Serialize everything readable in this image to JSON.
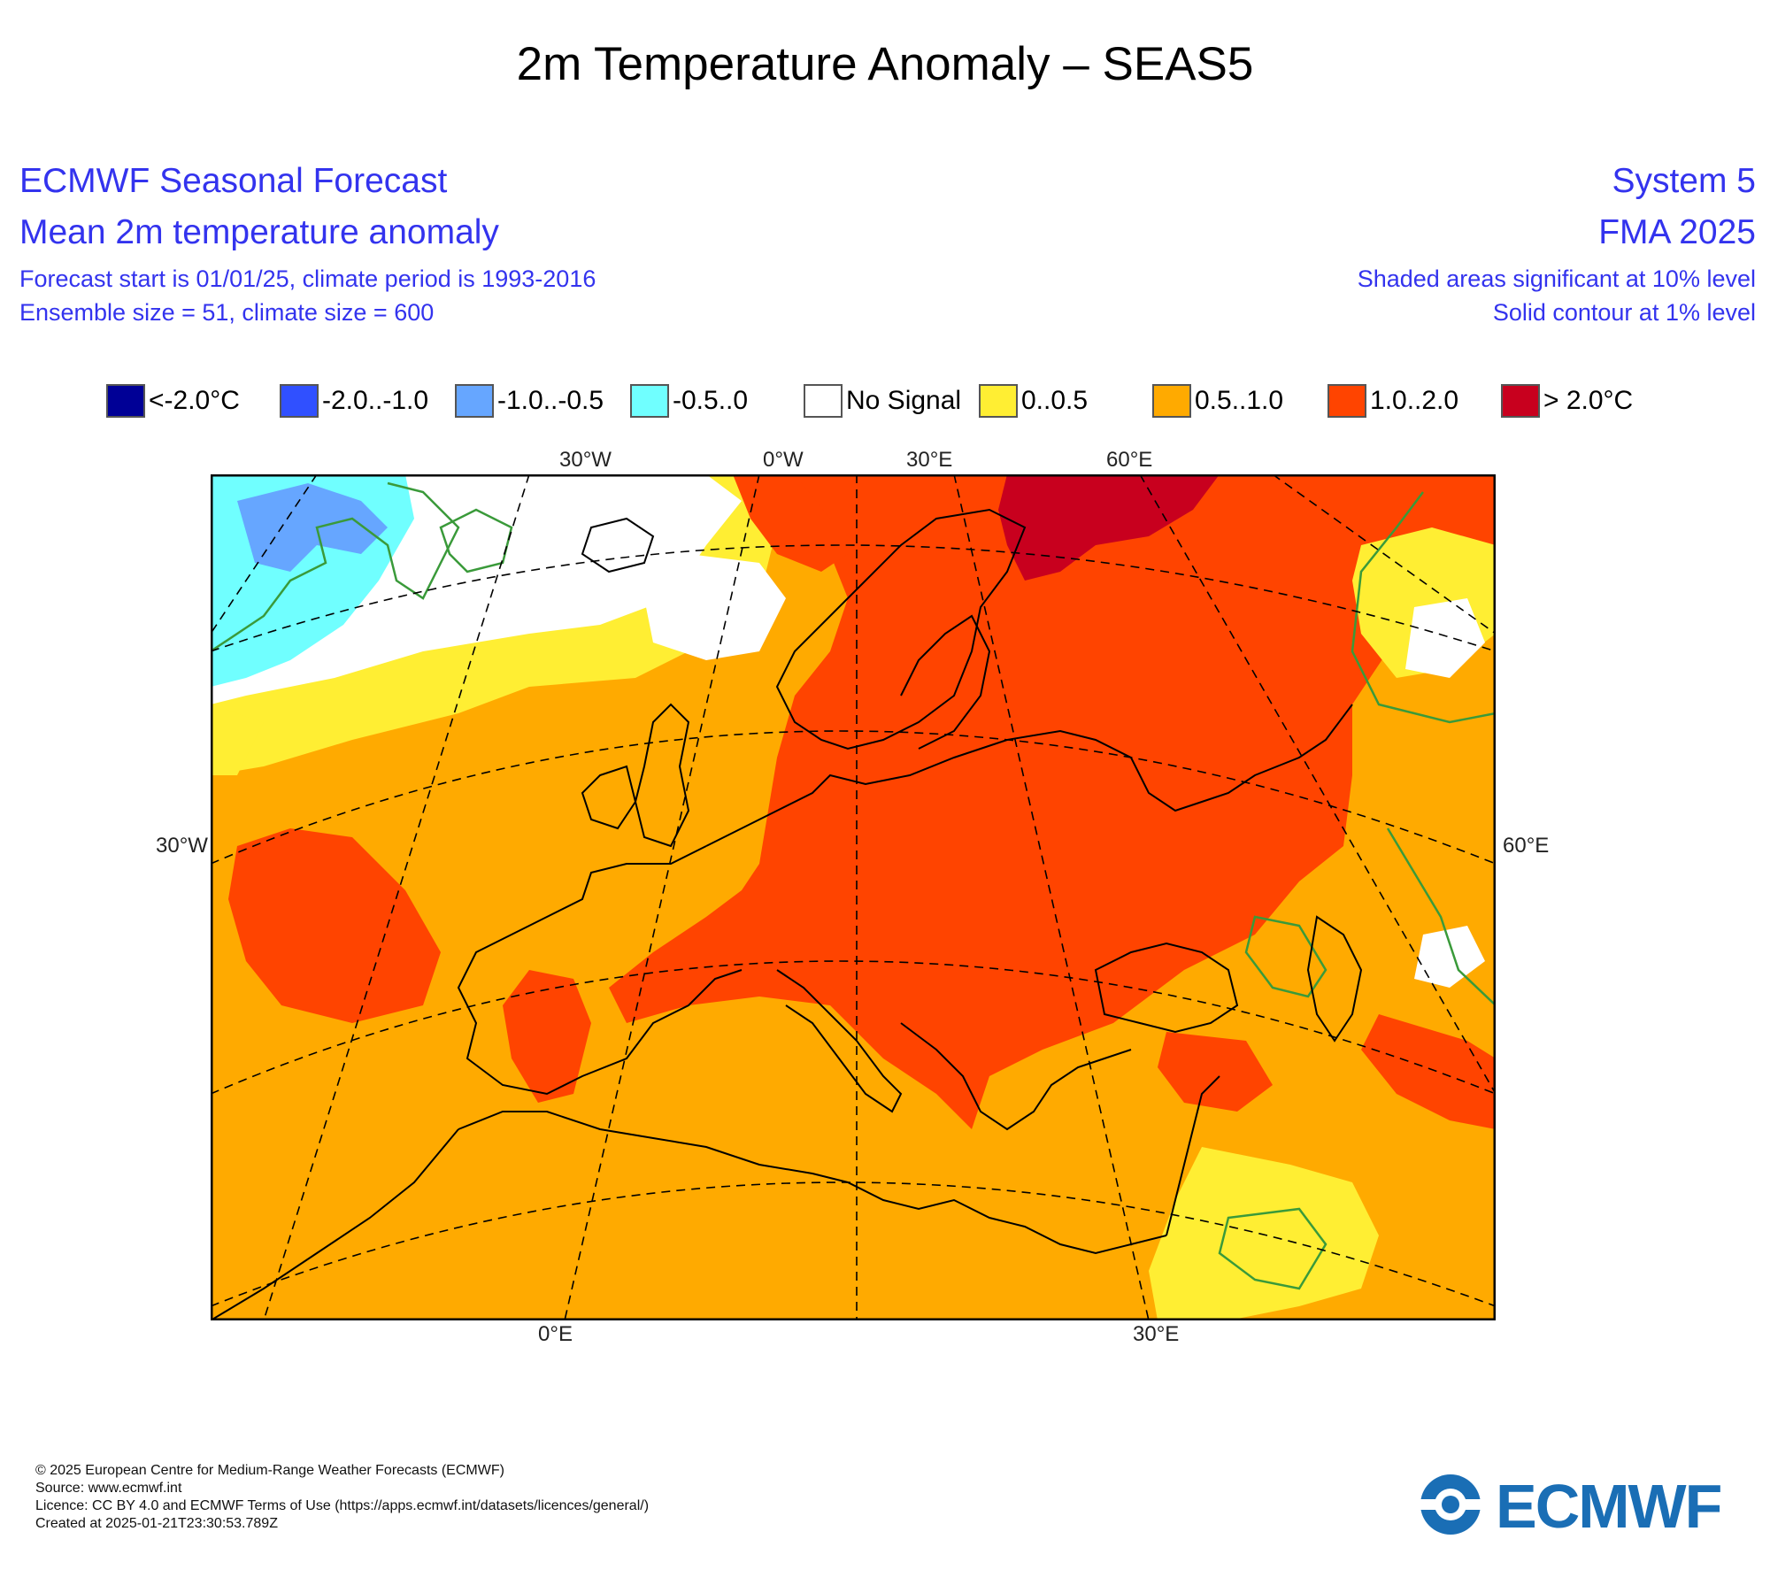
{
  "page_title": "2m Temperature Anomaly – SEAS5",
  "header": {
    "left_line1": "ECMWF Seasonal Forecast",
    "left_line2": "Mean 2m temperature anomaly",
    "left_line3": "Forecast start is 01/01/25, climate period is 1993-2016",
    "left_line4": "Ensemble size = 51, climate size = 600",
    "right_line1": "System 5",
    "right_line2": "FMA 2025",
    "right_line3": "Shaded areas significant at 10% level",
    "right_line4": "Solid contour at 1% level",
    "text_color": "#3333ee"
  },
  "legend": [
    {
      "label": "<-2.0°C",
      "color": "#000096"
    },
    {
      "label": "-2.0..-1.0",
      "color": "#3050ff"
    },
    {
      "label": "-1.0..-0.5",
      "color": "#66a6ff"
    },
    {
      "label": "-0.5..0",
      "color": "#70ffff"
    },
    {
      "label": "No Signal",
      "color": "#ffffff"
    },
    {
      "label": "0..0.5",
      "color": "#ffee33"
    },
    {
      "label": "0.5..1.0",
      "color": "#ffaa00"
    },
    {
      "label": "1.0..2.0",
      "color": "#ff4400"
    },
    {
      "label": "> 2.0°C",
      "color": "#c8001e"
    }
  ],
  "map": {
    "region": "Europe / North Africa",
    "coord_labels": {
      "top_1": "30°W",
      "top_2": "0°W",
      "top_3": "30°E",
      "top_4": "60°E",
      "left": "30°W",
      "right": "60°E",
      "bottom_1": "0°E",
      "bottom_2": "30°E"
    },
    "colors": {
      "base": "#ffaa00",
      "warm": "#ff4400",
      "very_warm": "#c8001e",
      "weak": "#ffee33",
      "cool": "#70ffff",
      "cooler": "#66a6ff",
      "significance_contour": "#3a9a3a",
      "coastline": "#000000"
    }
  },
  "footer": {
    "line1": "© 2025 European Centre for Medium-Range Weather Forecasts (ECMWF)",
    "line2": "Source: www.ecmwf.int",
    "line3": "Licence: CC BY 4.0 and ECMWF Terms of Use (https://apps.ecmwf.int/datasets/licences/general/)",
    "line4": "Created at 2025-01-21T23:30:53.789Z"
  },
  "logo": {
    "text": "ECMWF",
    "color": "#1a6eb5"
  }
}
